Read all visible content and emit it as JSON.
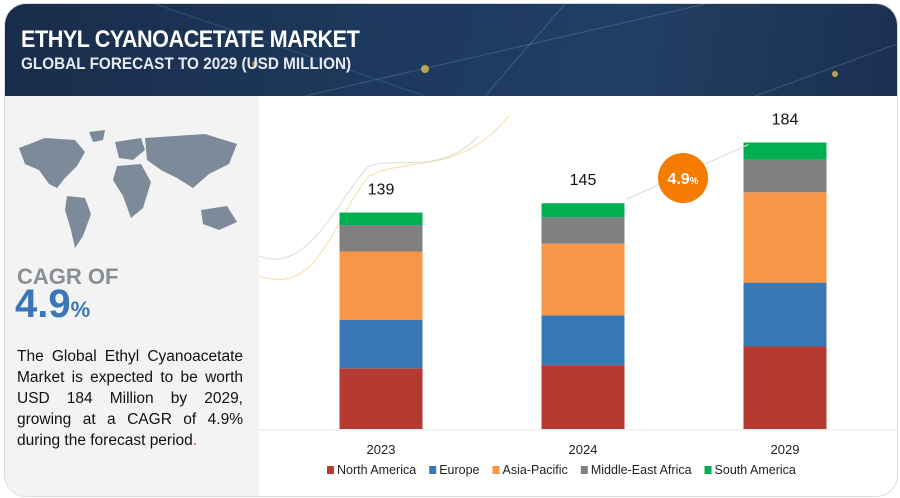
{
  "header": {
    "title": "ETHYL CYANOACETATE MARKET",
    "subtitle": "GLOBAL FORECAST TO 2029 (USD MILLION)"
  },
  "left_panel": {
    "cagr_label": "CAGR OF",
    "cagr_value": "4.9",
    "cagr_unit": "%",
    "description": "The Global Ethyl Cyanoacetate Market is expected to be worth USD 184 Million by 2029, growing at a CAGR of 4.9% during the forecast period",
    "description_end": "."
  },
  "chart_data": {
    "type": "bar",
    "stacked": true,
    "categories": [
      "2023",
      "2024",
      "2029"
    ],
    "totals": [
      "139",
      "145",
      "184"
    ],
    "series": [
      {
        "name": "North America",
        "color": "#b53a32",
        "values": [
          39,
          41,
          53
        ]
      },
      {
        "name": "Europe",
        "color": "#3a78b5",
        "values": [
          31,
          32,
          41
        ]
      },
      {
        "name": "Asia-Pacific",
        "color": "#f79646",
        "values": [
          44,
          46,
          58
        ]
      },
      {
        "name": "Middle-East Africa",
        "color": "#808080",
        "values": [
          17,
          17,
          21
        ]
      },
      {
        "name": "South America",
        "color": "#00b050",
        "values": [
          8,
          9,
          11
        ]
      }
    ],
    "ylim": [
      0,
      190
    ],
    "grid": false,
    "legend": "bottom",
    "annotation": {
      "value": "4.9",
      "unit": "%",
      "color": "#f57c00"
    }
  }
}
